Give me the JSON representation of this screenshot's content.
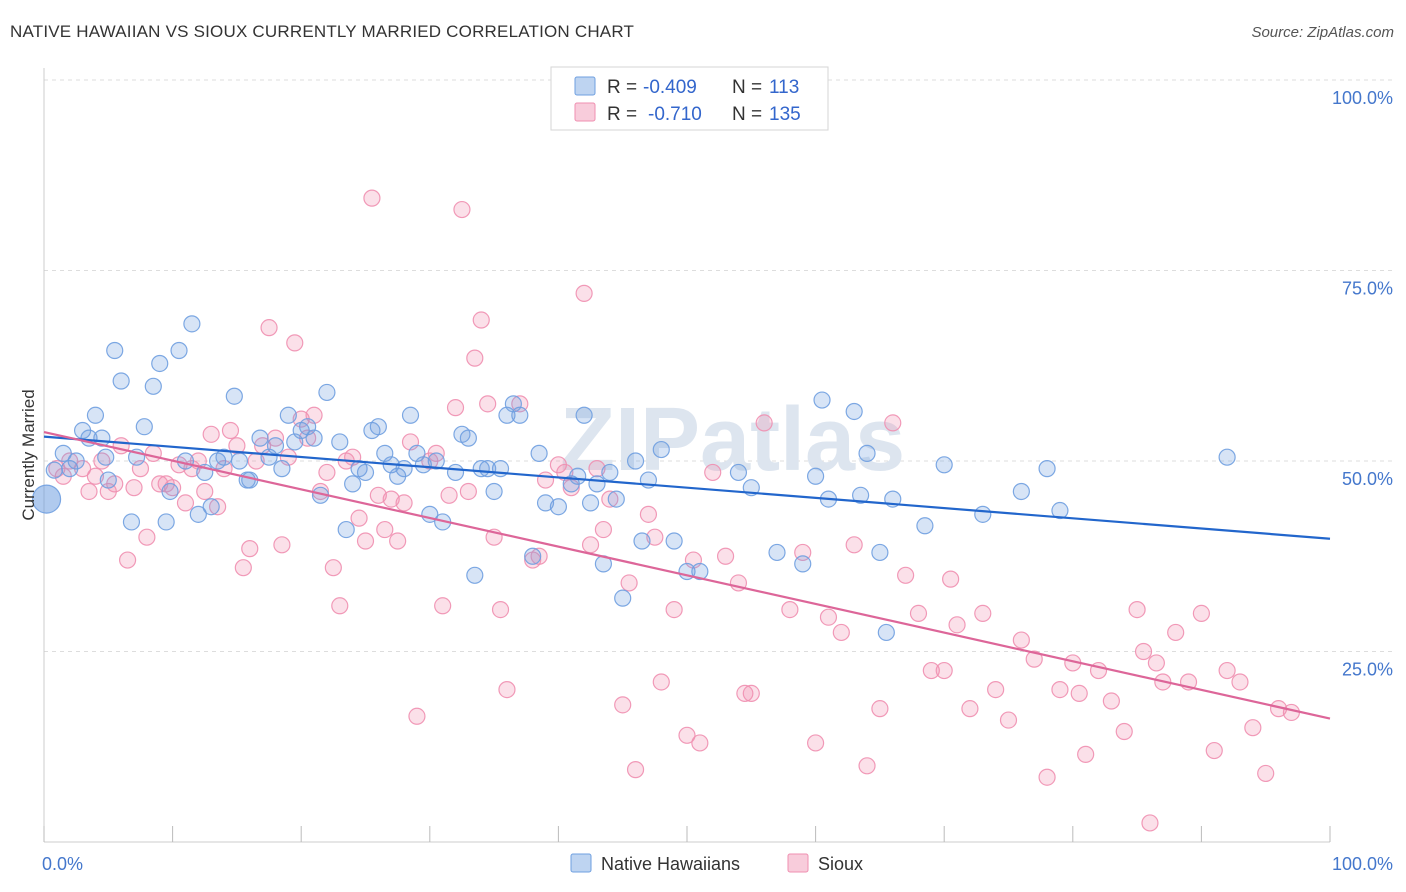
{
  "title": "NATIVE HAWAIIAN VS SIOUX CURRENTLY MARRIED CORRELATION CHART",
  "source": "Source: ZipAtlas.com",
  "watermark": "ZIPatlas",
  "chart_data": {
    "type": "scatter",
    "ylabel": "Currently Married",
    "xlim": [
      0,
      100
    ],
    "ylim": [
      0,
      100
    ],
    "x_tick_labels": [
      "0.0%",
      "100.0%"
    ],
    "y_tick_labels": [
      "100.0%",
      "75.0%",
      "50.0%",
      "25.0%"
    ],
    "y_tick_values": [
      100,
      75,
      50,
      25
    ],
    "grid": true,
    "legend": [
      {
        "r_label": "R =",
        "r_value": "-0.409",
        "n_label": "N =",
        "n_value": "113",
        "color": "#6f9fe0"
      },
      {
        "r_label": "R =",
        "r_value": "-0.710",
        "n_label": "N =",
        "n_value": "135",
        "color": "#ef8fb0"
      }
    ],
    "series": [
      {
        "name": "Native Hawaiians",
        "color": "#6f9fe0",
        "line_color": "#2266cc",
        "trend": [
          [
            0,
            53.2
          ],
          [
            100,
            39.8
          ]
        ],
        "points": [
          [
            0.2,
            45
          ],
          [
            0.8,
            48.8
          ],
          [
            1.5,
            51
          ],
          [
            2,
            49
          ],
          [
            2.5,
            50
          ],
          [
            3,
            54
          ],
          [
            3.5,
            53
          ],
          [
            4,
            56
          ],
          [
            4.5,
            53
          ],
          [
            4.8,
            50.5
          ],
          [
            5,
            47.5
          ],
          [
            5.5,
            64.5
          ],
          [
            6,
            60.5
          ],
          [
            6.8,
            42
          ],
          [
            7.2,
            50.5
          ],
          [
            7.8,
            54.5
          ],
          [
            8.5,
            59.8
          ],
          [
            9,
            62.8
          ],
          [
            9.5,
            42
          ],
          [
            9.8,
            46
          ],
          [
            10.5,
            64.5
          ],
          [
            11,
            50
          ],
          [
            11.5,
            68
          ],
          [
            12,
            43
          ],
          [
            12.5,
            48.5
          ],
          [
            13,
            44
          ],
          [
            13.5,
            50
          ],
          [
            14,
            50.5
          ],
          [
            14.8,
            58.5
          ],
          [
            15.2,
            50
          ],
          [
            15.8,
            47.5
          ],
          [
            16,
            47.5
          ],
          [
            16.8,
            53
          ],
          [
            17.5,
            50.5
          ],
          [
            18,
            52
          ],
          [
            18.5,
            49
          ],
          [
            19,
            56
          ],
          [
            19.5,
            52.5
          ],
          [
            20,
            54
          ],
          [
            20.5,
            54.5
          ],
          [
            21,
            53
          ],
          [
            21.5,
            45.5
          ],
          [
            22,
            59
          ],
          [
            23,
            52.5
          ],
          [
            23.5,
            41
          ],
          [
            24,
            47
          ],
          [
            24.5,
            49
          ],
          [
            25,
            48.5
          ],
          [
            25.5,
            54
          ],
          [
            26,
            54.5
          ],
          [
            26.5,
            51
          ],
          [
            27,
            49.5
          ],
          [
            27.5,
            48
          ],
          [
            28,
            49
          ],
          [
            28.5,
            56
          ],
          [
            29,
            51
          ],
          [
            29.5,
            49.5
          ],
          [
            30,
            43
          ],
          [
            30.5,
            50
          ],
          [
            31,
            42
          ],
          [
            32,
            48.5
          ],
          [
            32.5,
            53.5
          ],
          [
            33,
            53
          ],
          [
            33.5,
            35
          ],
          [
            34,
            49
          ],
          [
            34.5,
            49
          ],
          [
            35,
            46
          ],
          [
            35.5,
            49
          ],
          [
            36,
            56
          ],
          [
            36.5,
            57.5
          ],
          [
            37,
            56
          ],
          [
            38,
            37.5
          ],
          [
            38.5,
            51
          ],
          [
            39,
            44.5
          ],
          [
            40,
            44
          ],
          [
            41,
            47
          ],
          [
            41.5,
            48
          ],
          [
            42,
            56
          ],
          [
            42.5,
            44.5
          ],
          [
            43,
            47
          ],
          [
            43.5,
            36.5
          ],
          [
            44,
            48.5
          ],
          [
            44.5,
            45
          ],
          [
            45,
            32
          ],
          [
            46,
            50
          ],
          [
            46.5,
            39.5
          ],
          [
            47,
            47.5
          ],
          [
            48,
            51.5
          ],
          [
            49,
            39.5
          ],
          [
            50,
            35.5
          ],
          [
            51,
            35.5
          ],
          [
            54,
            48.5
          ],
          [
            55,
            46.5
          ],
          [
            57,
            38
          ],
          [
            59,
            36.5
          ],
          [
            60,
            48
          ],
          [
            60.5,
            58
          ],
          [
            61,
            45
          ],
          [
            63,
            56.5
          ],
          [
            63.5,
            45.5
          ],
          [
            64,
            51
          ],
          [
            65,
            38
          ],
          [
            65.5,
            27.5
          ],
          [
            66,
            45
          ],
          [
            68.5,
            41.5
          ],
          [
            70,
            49.5
          ],
          [
            73,
            43
          ],
          [
            76,
            46
          ],
          [
            78,
            49
          ],
          [
            79,
            43.5
          ],
          [
            92,
            50.5
          ]
        ]
      },
      {
        "name": "Sioux",
        "color": "#ef8fb0",
        "line_color": "#dd6699",
        "trend": [
          [
            0,
            53.8
          ],
          [
            100,
            16.2
          ]
        ],
        "points": [
          [
            1,
            49
          ],
          [
            1.5,
            48
          ],
          [
            2,
            50
          ],
          [
            3,
            49
          ],
          [
            3.5,
            46
          ],
          [
            4,
            48
          ],
          [
            4.5,
            50
          ],
          [
            5,
            46
          ],
          [
            5.5,
            47
          ],
          [
            6,
            52
          ],
          [
            6.5,
            37
          ],
          [
            7,
            46.5
          ],
          [
            7.5,
            49
          ],
          [
            8,
            40
          ],
          [
            8.5,
            51
          ],
          [
            9,
            47
          ],
          [
            9.5,
            47
          ],
          [
            10,
            46.5
          ],
          [
            10.5,
            49.5
          ],
          [
            11,
            44.5
          ],
          [
            11.5,
            49
          ],
          [
            12,
            50
          ],
          [
            12.5,
            46
          ],
          [
            13,
            53.5
          ],
          [
            13.5,
            44
          ],
          [
            14,
            49
          ],
          [
            14.5,
            54
          ],
          [
            15,
            52
          ],
          [
            15.5,
            36
          ],
          [
            16,
            38.5
          ],
          [
            16.5,
            50
          ],
          [
            17,
            52
          ],
          [
            17.5,
            67.5
          ],
          [
            18,
            53
          ],
          [
            18.5,
            39
          ],
          [
            19,
            50.5
          ],
          [
            19.5,
            65.5
          ],
          [
            20,
            55.5
          ],
          [
            20.5,
            53
          ],
          [
            21,
            56
          ],
          [
            21.5,
            46
          ],
          [
            22,
            48.5
          ],
          [
            22.5,
            36
          ],
          [
            23,
            31
          ],
          [
            23.5,
            50
          ],
          [
            24,
            50.5
          ],
          [
            24.5,
            42.5
          ],
          [
            25,
            39.5
          ],
          [
            25.5,
            84.5
          ],
          [
            26,
            45.5
          ],
          [
            26.5,
            41
          ],
          [
            27,
            45
          ],
          [
            27.5,
            39.5
          ],
          [
            28,
            44.5
          ],
          [
            28.5,
            52.5
          ],
          [
            29,
            16.5
          ],
          [
            30,
            50
          ],
          [
            30.5,
            51
          ],
          [
            31,
            31
          ],
          [
            31.5,
            45.5
          ],
          [
            32,
            57
          ],
          [
            32.5,
            83
          ],
          [
            33,
            46
          ],
          [
            33.5,
            63.5
          ],
          [
            34,
            68.5
          ],
          [
            34.5,
            57.5
          ],
          [
            35,
            40
          ],
          [
            35.5,
            30.5
          ],
          [
            36,
            20
          ],
          [
            37,
            57.5
          ],
          [
            38,
            37
          ],
          [
            38.5,
            37.5
          ],
          [
            39,
            47.5
          ],
          [
            40,
            49.5
          ],
          [
            40.5,
            48.5
          ],
          [
            41,
            46.5
          ],
          [
            42,
            72
          ],
          [
            42.5,
            39
          ],
          [
            43,
            49
          ],
          [
            43.5,
            41
          ],
          [
            44,
            45
          ],
          [
            45,
            18
          ],
          [
            45.5,
            34
          ],
          [
            46,
            9.5
          ],
          [
            47,
            43
          ],
          [
            47.5,
            40
          ],
          [
            48,
            21
          ],
          [
            49,
            30.5
          ],
          [
            50,
            14
          ],
          [
            50.5,
            37
          ],
          [
            51,
            13
          ],
          [
            52,
            48.5
          ],
          [
            53,
            37.5
          ],
          [
            54,
            34
          ],
          [
            54.5,
            19.5
          ],
          [
            55,
            19.5
          ],
          [
            56,
            55
          ],
          [
            58,
            30.5
          ],
          [
            59,
            38
          ],
          [
            60,
            13
          ],
          [
            61,
            29.5
          ],
          [
            62,
            27.5
          ],
          [
            63,
            39
          ],
          [
            64,
            10
          ],
          [
            65,
            17.5
          ],
          [
            66,
            55
          ],
          [
            67,
            35
          ],
          [
            68,
            30
          ],
          [
            69,
            22.5
          ],
          [
            70,
            22.5
          ],
          [
            70.5,
            34.5
          ],
          [
            71,
            28.5
          ],
          [
            72,
            17.5
          ],
          [
            73,
            30
          ],
          [
            74,
            20
          ],
          [
            75,
            16
          ],
          [
            76,
            26.5
          ],
          [
            77,
            24
          ],
          [
            78,
            8.5
          ],
          [
            79,
            20
          ],
          [
            80,
            23.5
          ],
          [
            80.5,
            19.5
          ],
          [
            81,
            11.5
          ],
          [
            82,
            22.5
          ],
          [
            83,
            18.5
          ],
          [
            84,
            14.5
          ],
          [
            85,
            30.5
          ],
          [
            85.5,
            25
          ],
          [
            86,
            2.5
          ],
          [
            86.5,
            23.5
          ],
          [
            87,
            21
          ],
          [
            88,
            27.5
          ],
          [
            89,
            21
          ],
          [
            90,
            30
          ],
          [
            91,
            12
          ],
          [
            92,
            22.5
          ],
          [
            93,
            21
          ],
          [
            94,
            15
          ],
          [
            95,
            9
          ],
          [
            96,
            17.5
          ],
          [
            97,
            17
          ]
        ]
      }
    ]
  }
}
